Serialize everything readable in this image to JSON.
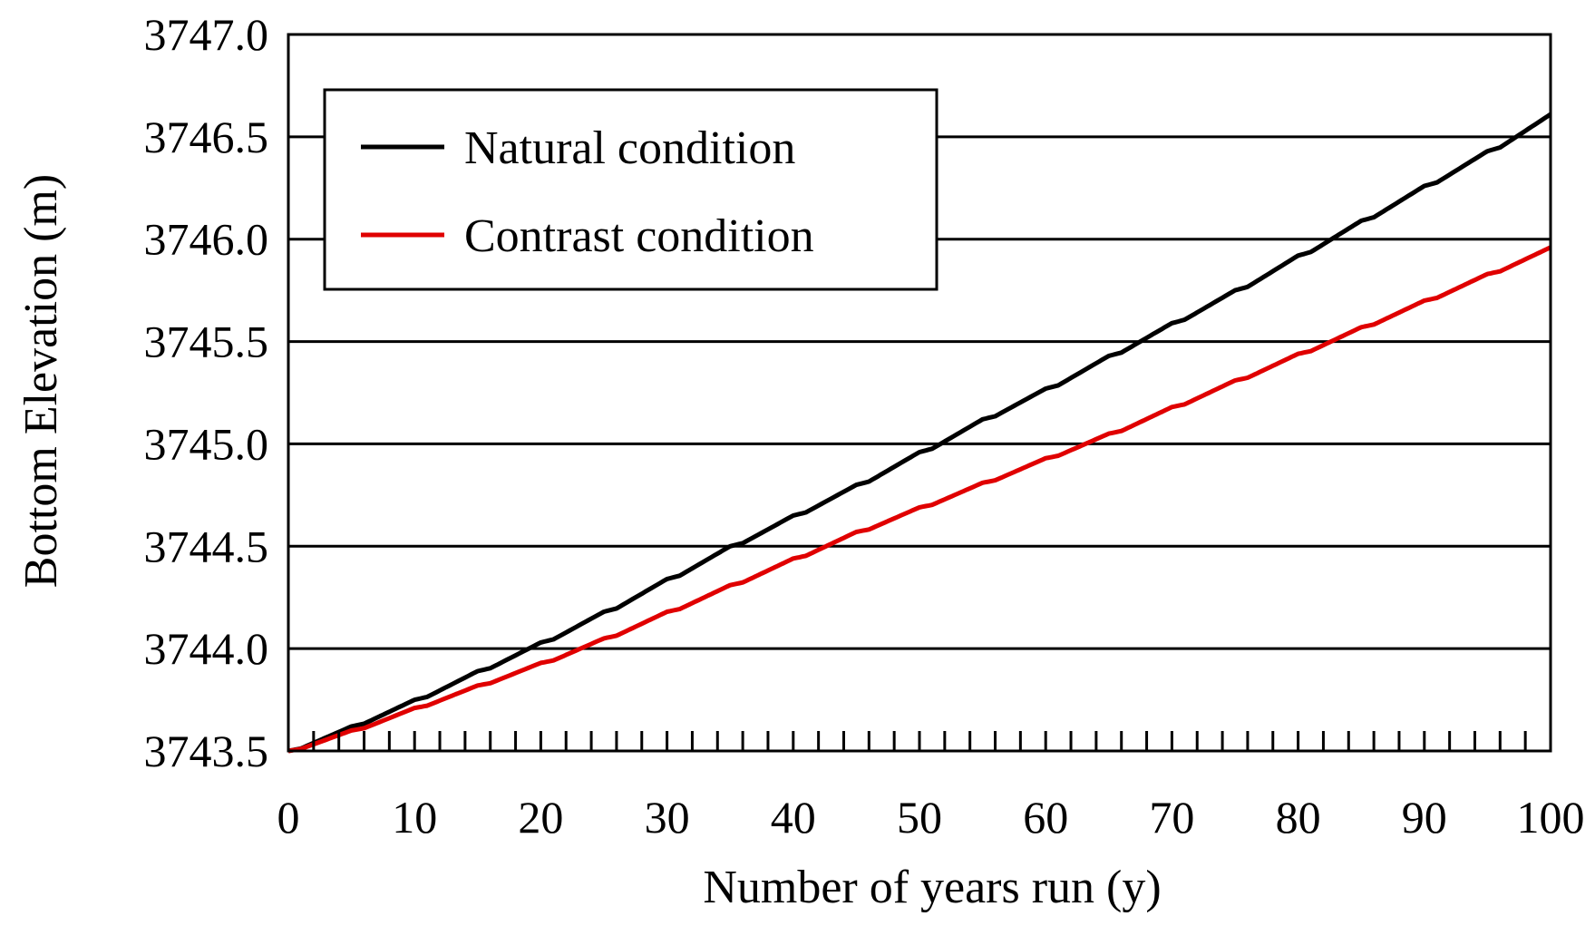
{
  "chart_data": {
    "type": "line",
    "title": "",
    "xlabel": "Number of years run (y)",
    "ylabel": "Bottom Elevation (m)",
    "xlim": [
      0,
      100
    ],
    "ylim": [
      3743.5,
      3747.0
    ],
    "x_ticks": [
      0,
      10,
      20,
      30,
      40,
      50,
      60,
      70,
      80,
      90,
      100
    ],
    "x_tick_labels": [
      "0",
      "10",
      "20",
      "30",
      "40",
      "50",
      "60",
      "70",
      "80",
      "90",
      "100"
    ],
    "y_ticks": [
      3743.5,
      3744.0,
      3744.5,
      3745.0,
      3745.5,
      3746.0,
      3746.5,
      3747.0
    ],
    "y_tick_labels": [
      "3743.5",
      "3744.0",
      "3744.5",
      "3745.0",
      "3745.5",
      "3746.0",
      "3746.5",
      "3747.0"
    ],
    "minor_x_tick_step": 2,
    "grid": "horizontal",
    "legend_position": "top-left",
    "series": [
      {
        "name": "Natural condition",
        "color": "#000000",
        "x": [
          0,
          5,
          10,
          15,
          20,
          25,
          30,
          35,
          40,
          45,
          50,
          55,
          60,
          65,
          70,
          75,
          80,
          85,
          90,
          95,
          100
        ],
        "values": [
          3743.5,
          3743.62,
          3743.75,
          3743.89,
          3744.03,
          3744.18,
          3744.34,
          3744.5,
          3744.65,
          3744.8,
          3744.96,
          3745.12,
          3745.27,
          3745.43,
          3745.59,
          3745.75,
          3745.92,
          3746.09,
          3746.26,
          3746.43,
          3746.61
        ]
      },
      {
        "name": "Contrast condition",
        "color": "#e00000",
        "x": [
          0,
          5,
          10,
          15,
          20,
          25,
          30,
          35,
          40,
          45,
          50,
          55,
          60,
          65,
          70,
          75,
          80,
          85,
          90,
          95,
          100
        ],
        "values": [
          3743.5,
          3743.6,
          3743.71,
          3743.82,
          3743.93,
          3744.05,
          3744.18,
          3744.31,
          3744.44,
          3744.57,
          3744.69,
          3744.81,
          3744.93,
          3745.05,
          3745.18,
          3745.31,
          3745.44,
          3745.57,
          3745.7,
          3745.83,
          3745.96
        ]
      }
    ]
  }
}
